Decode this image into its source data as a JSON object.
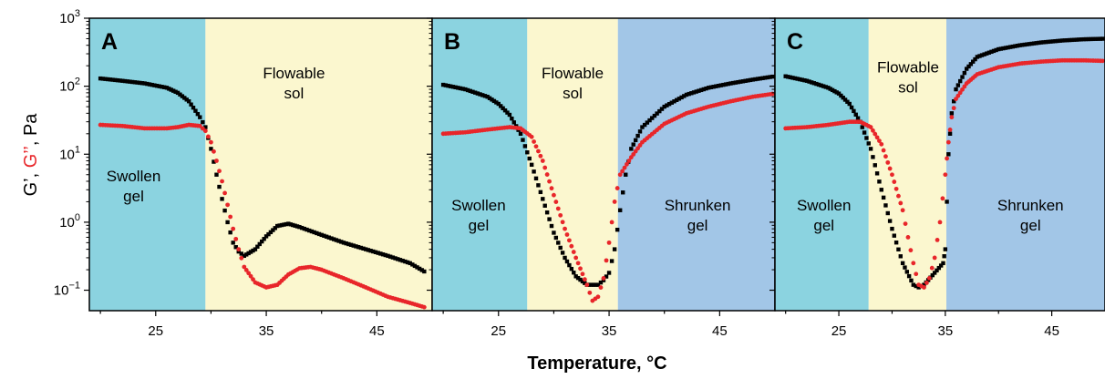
{
  "colors": {
    "swollen": "#8bd3e0",
    "sol": "#fbf7cf",
    "shrunken": "#a2c6e7",
    "g_prime": "#000000",
    "g_double_prime": "#e8262a"
  },
  "axes": {
    "xlabel": "Temperature, °C",
    "ylabel_parts": [
      "G",
      "’",
      ", ",
      "G",
      "’’",
      ", Pa"
    ],
    "x_ticks": [
      "25",
      "35",
      "45"
    ],
    "y_ticks": [
      {
        "base": "10",
        "exp": "−1"
      },
      {
        "base": "10",
        "exp": "0"
      },
      {
        "base": "10",
        "exp": "1"
      },
      {
        "base": "10",
        "exp": "2"
      },
      {
        "base": "10",
        "exp": "3"
      }
    ]
  },
  "chart_data": [
    {
      "type": "scatter",
      "panel": "A",
      "xlim": [
        19,
        50
      ],
      "ylim": [
        0.05,
        1000
      ],
      "y_scale": "log",
      "regions": [
        {
          "kind": "swollen",
          "from": 19,
          "to": 29.5,
          "label": [
            "Swollen",
            "gel"
          ],
          "label_at": [
            23,
            4.0
          ]
        },
        {
          "kind": "sol",
          "from": 29.5,
          "to": 50,
          "label": [
            "Flowable",
            "sol"
          ],
          "label_at": [
            37.5,
            130
          ]
        }
      ],
      "series": [
        {
          "role": "G'",
          "points": [
            [
              20,
              130
            ],
            [
              22,
              120
            ],
            [
              24,
              110
            ],
            [
              26,
              95
            ],
            [
              27,
              80
            ],
            [
              28,
              60
            ],
            [
              29,
              35
            ],
            [
              29.5,
              25
            ],
            [
              30,
              12
            ],
            [
              30.5,
              5
            ],
            [
              31,
              2.2
            ],
            [
              31.5,
              1.0
            ],
            [
              32,
              0.5
            ],
            [
              32.5,
              0.37
            ],
            [
              33,
              0.32
            ],
            [
              34,
              0.4
            ],
            [
              35,
              0.62
            ],
            [
              36,
              0.88
            ],
            [
              37,
              0.95
            ],
            [
              38,
              0.85
            ],
            [
              40,
              0.65
            ],
            [
              42,
              0.5
            ],
            [
              44,
              0.4
            ],
            [
              46,
              0.32
            ],
            [
              48,
              0.25
            ],
            [
              49.5,
              0.18
            ]
          ]
        },
        {
          "role": "G''",
          "points": [
            [
              20,
              27
            ],
            [
              22,
              26
            ],
            [
              24,
              24
            ],
            [
              26,
              24
            ],
            [
              27,
              25
            ],
            [
              28,
              27
            ],
            [
              29,
              26
            ],
            [
              29.5,
              22
            ],
            [
              30,
              15
            ],
            [
              30.5,
              8
            ],
            [
              31,
              4
            ],
            [
              31.5,
              1.8
            ],
            [
              32,
              0.8
            ],
            [
              32.5,
              0.4
            ],
            [
              33,
              0.22
            ],
            [
              34,
              0.13
            ],
            [
              35,
              0.11
            ],
            [
              36,
              0.12
            ],
            [
              37,
              0.17
            ],
            [
              38,
              0.21
            ],
            [
              39,
              0.22
            ],
            [
              40,
              0.2
            ],
            [
              42,
              0.15
            ],
            [
              44,
              0.11
            ],
            [
              46,
              0.08
            ],
            [
              48,
              0.065
            ],
            [
              49.5,
              0.055
            ]
          ]
        }
      ]
    },
    {
      "type": "scatter",
      "panel": "B",
      "xlim": [
        19,
        50
      ],
      "ylim": [
        0.05,
        1000
      ],
      "y_scale": "log",
      "regions": [
        {
          "kind": "swollen",
          "from": 19,
          "to": 27.6,
          "label": [
            "Swollen",
            "gel"
          ],
          "label_at": [
            23.2,
            1.5
          ]
        },
        {
          "kind": "sol",
          "from": 27.6,
          "to": 35.8,
          "label": [
            "Flowable",
            "sol"
          ],
          "label_at": [
            31.7,
            130
          ]
        },
        {
          "kind": "shrunken",
          "from": 35.8,
          "to": 50,
          "label": [
            "Shrunken",
            "gel"
          ],
          "label_at": [
            43,
            1.5
          ]
        }
      ],
      "series": [
        {
          "role": "G'",
          "points": [
            [
              20,
              105
            ],
            [
              22,
              90
            ],
            [
              24,
              70
            ],
            [
              25,
              55
            ],
            [
              26,
              38
            ],
            [
              27,
              20
            ],
            [
              28,
              7
            ],
            [
              29,
              2.2
            ],
            [
              30,
              0.7
            ],
            [
              31,
              0.3
            ],
            [
              32,
              0.16
            ],
            [
              33,
              0.12
            ],
            [
              34,
              0.12
            ],
            [
              34.5,
              0.14
            ],
            [
              35,
              0.18
            ],
            [
              35.5,
              0.4
            ],
            [
              36,
              1.5
            ],
            [
              36.5,
              5
            ],
            [
              37,
              12
            ],
            [
              38,
              25
            ],
            [
              40,
              50
            ],
            [
              42,
              75
            ],
            [
              44,
              95
            ],
            [
              46,
              110
            ],
            [
              48,
              125
            ],
            [
              50,
              140
            ]
          ]
        },
        {
          "role": "G''",
          "points": [
            [
              20,
              20
            ],
            [
              22,
              21
            ],
            [
              24,
              23
            ],
            [
              26,
              25
            ],
            [
              27,
              24
            ],
            [
              28,
              18
            ],
            [
              29,
              8
            ],
            [
              30,
              2.5
            ],
            [
              31,
              0.8
            ],
            [
              32,
              0.3
            ],
            [
              33,
              0.12
            ],
            [
              33.5,
              0.07
            ],
            [
              34,
              0.08
            ],
            [
              34.5,
              0.15
            ],
            [
              35,
              0.5
            ],
            [
              35.5,
              2
            ],
            [
              36,
              5
            ],
            [
              37,
              9
            ],
            [
              38,
              15
            ],
            [
              40,
              28
            ],
            [
              42,
              40
            ],
            [
              44,
              50
            ],
            [
              46,
              60
            ],
            [
              48,
              70
            ],
            [
              50,
              78
            ]
          ]
        }
      ]
    },
    {
      "type": "scatter",
      "panel": "C",
      "xlim": [
        19,
        50
      ],
      "ylim": [
        0.05,
        1000
      ],
      "y_scale": "log",
      "regions": [
        {
          "kind": "swollen",
          "from": 19,
          "to": 27.8,
          "label": [
            "Swollen",
            "gel"
          ],
          "label_at": [
            23.6,
            1.5
          ]
        },
        {
          "kind": "sol",
          "from": 27.8,
          "to": 35.1,
          "label": [
            "Flowable",
            "sol"
          ],
          "label_at": [
            31.5,
            160
          ]
        },
        {
          "kind": "shrunken",
          "from": 35.1,
          "to": 50,
          "label": [
            "Shrunken",
            "gel"
          ],
          "label_at": [
            43,
            1.5
          ]
        }
      ],
      "series": [
        {
          "role": "G'",
          "points": [
            [
              20,
              140
            ],
            [
              22,
              120
            ],
            [
              24,
              95
            ],
            [
              25,
              78
            ],
            [
              26,
              55
            ],
            [
              27,
              30
            ],
            [
              28,
              12
            ],
            [
              29,
              3
            ],
            [
              30,
              0.8
            ],
            [
              31,
              0.25
            ],
            [
              32,
              0.12
            ],
            [
              32.5,
              0.11
            ],
            [
              33,
              0.12
            ],
            [
              34,
              0.18
            ],
            [
              34.8,
              0.25
            ],
            [
              35,
              0.4
            ],
            [
              35.3,
              10
            ],
            [
              35.6,
              40
            ],
            [
              36,
              90
            ],
            [
              37,
              180
            ],
            [
              38,
              270
            ],
            [
              40,
              350
            ],
            [
              42,
              400
            ],
            [
              44,
              440
            ],
            [
              46,
              470
            ],
            [
              48,
              490
            ],
            [
              50,
              500
            ]
          ]
        },
        {
          "role": "G''",
          "points": [
            [
              20,
              24
            ],
            [
              22,
              25
            ],
            [
              24,
              27
            ],
            [
              26,
              30
            ],
            [
              27,
              30
            ],
            [
              28,
              25
            ],
            [
              29,
              14
            ],
            [
              30,
              5
            ],
            [
              31,
              1.5
            ],
            [
              31.5,
              0.6
            ],
            [
              32,
              0.25
            ],
            [
              32.5,
              0.12
            ],
            [
              33,
              0.11
            ],
            [
              33.5,
              0.15
            ],
            [
              34,
              0.3
            ],
            [
              34.5,
              1
            ],
            [
              35,
              5
            ],
            [
              35.3,
              15
            ],
            [
              35.6,
              35
            ],
            [
              36,
              65
            ],
            [
              37,
              110
            ],
            [
              38,
              150
            ],
            [
              40,
              190
            ],
            [
              42,
              215
            ],
            [
              44,
              230
            ],
            [
              46,
              240
            ],
            [
              48,
              240
            ],
            [
              50,
              235
            ]
          ]
        }
      ]
    }
  ]
}
